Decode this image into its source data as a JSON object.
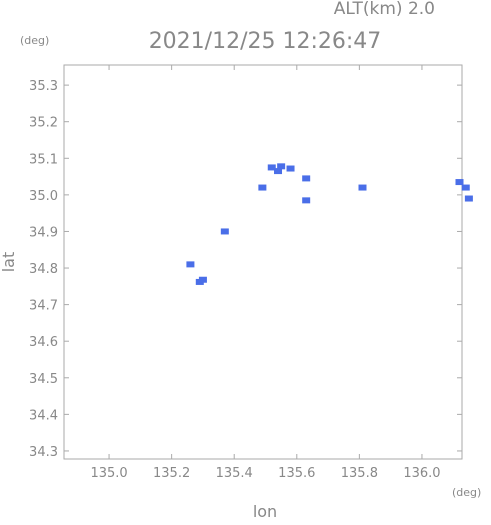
{
  "chart_data": {
    "type": "scatter",
    "header": "ALT(km)  2.0",
    "title": "2021/12/25 12:26:47",
    "y_unit": "(deg)",
    "x_unit": "(deg)",
    "x_label": "lon",
    "y_label": "lat",
    "color": "#4a6ee8",
    "xlim": [
      134.856,
      136.128
    ],
    "ylim": [
      34.278,
      35.355
    ],
    "xticks": [
      {
        "value": 135.0,
        "label": "135.0"
      },
      135.2,
      135.4,
      135.6,
      135.8,
      {
        "value": 136.0,
        "label": "136.0"
      }
    ],
    "yticks": [
      34.3,
      34.4,
      34.5,
      34.6,
      34.7,
      34.8,
      34.9,
      {
        "value": 35.0,
        "label": "35.0"
      },
      35.1,
      35.2,
      35.3
    ],
    "x": [
      135.52,
      135.55,
      135.58,
      135.54,
      135.3,
      135.29,
      135.63,
      135.63,
      136.12,
      136.14,
      136.15,
      135.49,
      135.26,
      135.37,
      135.81
    ],
    "y": [
      35.075,
      35.078,
      35.072,
      35.065,
      34.768,
      34.762,
      34.985,
      35.045,
      35.035,
      35.02,
      34.99,
      35.02,
      34.81,
      34.9,
      35.02
    ]
  }
}
